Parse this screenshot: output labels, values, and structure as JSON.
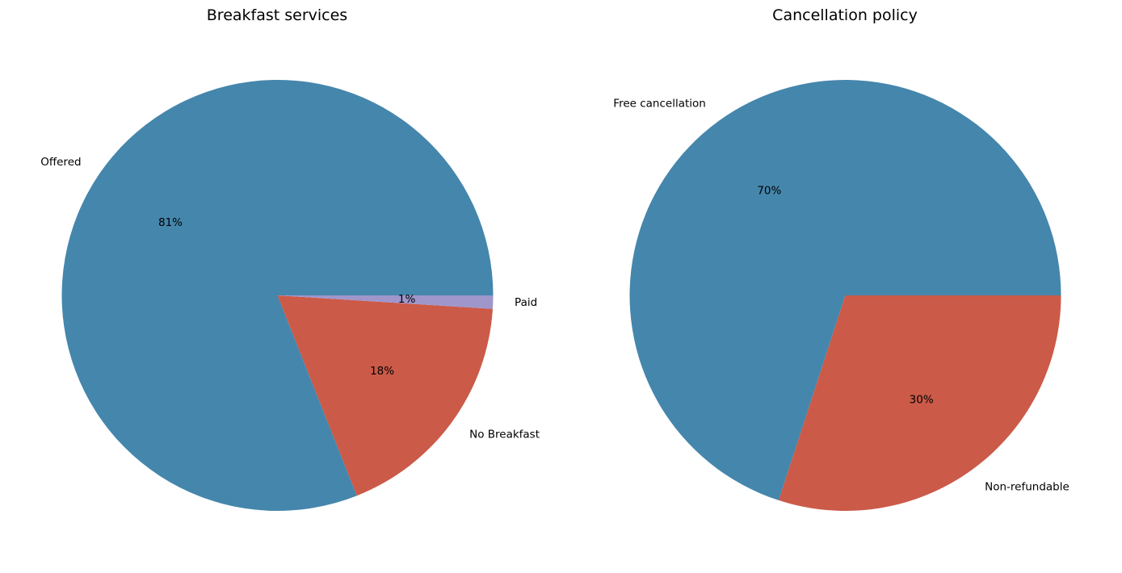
{
  "chart_data": [
    {
      "type": "pie",
      "title": "Breakfast services",
      "categories": [
        "Offered",
        "No Breakfast",
        "Paid"
      ],
      "values": [
        81,
        18,
        1
      ],
      "value_labels": [
        "81%",
        "18%",
        "1%"
      ],
      "colors": [
        "#4586ac",
        "#cb5a48",
        "#9f96cb"
      ],
      "start_angle": 0,
      "direction": "counterclockwise"
    },
    {
      "type": "pie",
      "title": "Cancellation policy",
      "categories": [
        "Free cancellation",
        "Non-refundable"
      ],
      "values": [
        70,
        30
      ],
      "value_labels": [
        "70%",
        "30%"
      ],
      "colors": [
        "#4586ac",
        "#cb5a48"
      ],
      "start_angle": 0,
      "direction": "counterclockwise"
    }
  ]
}
